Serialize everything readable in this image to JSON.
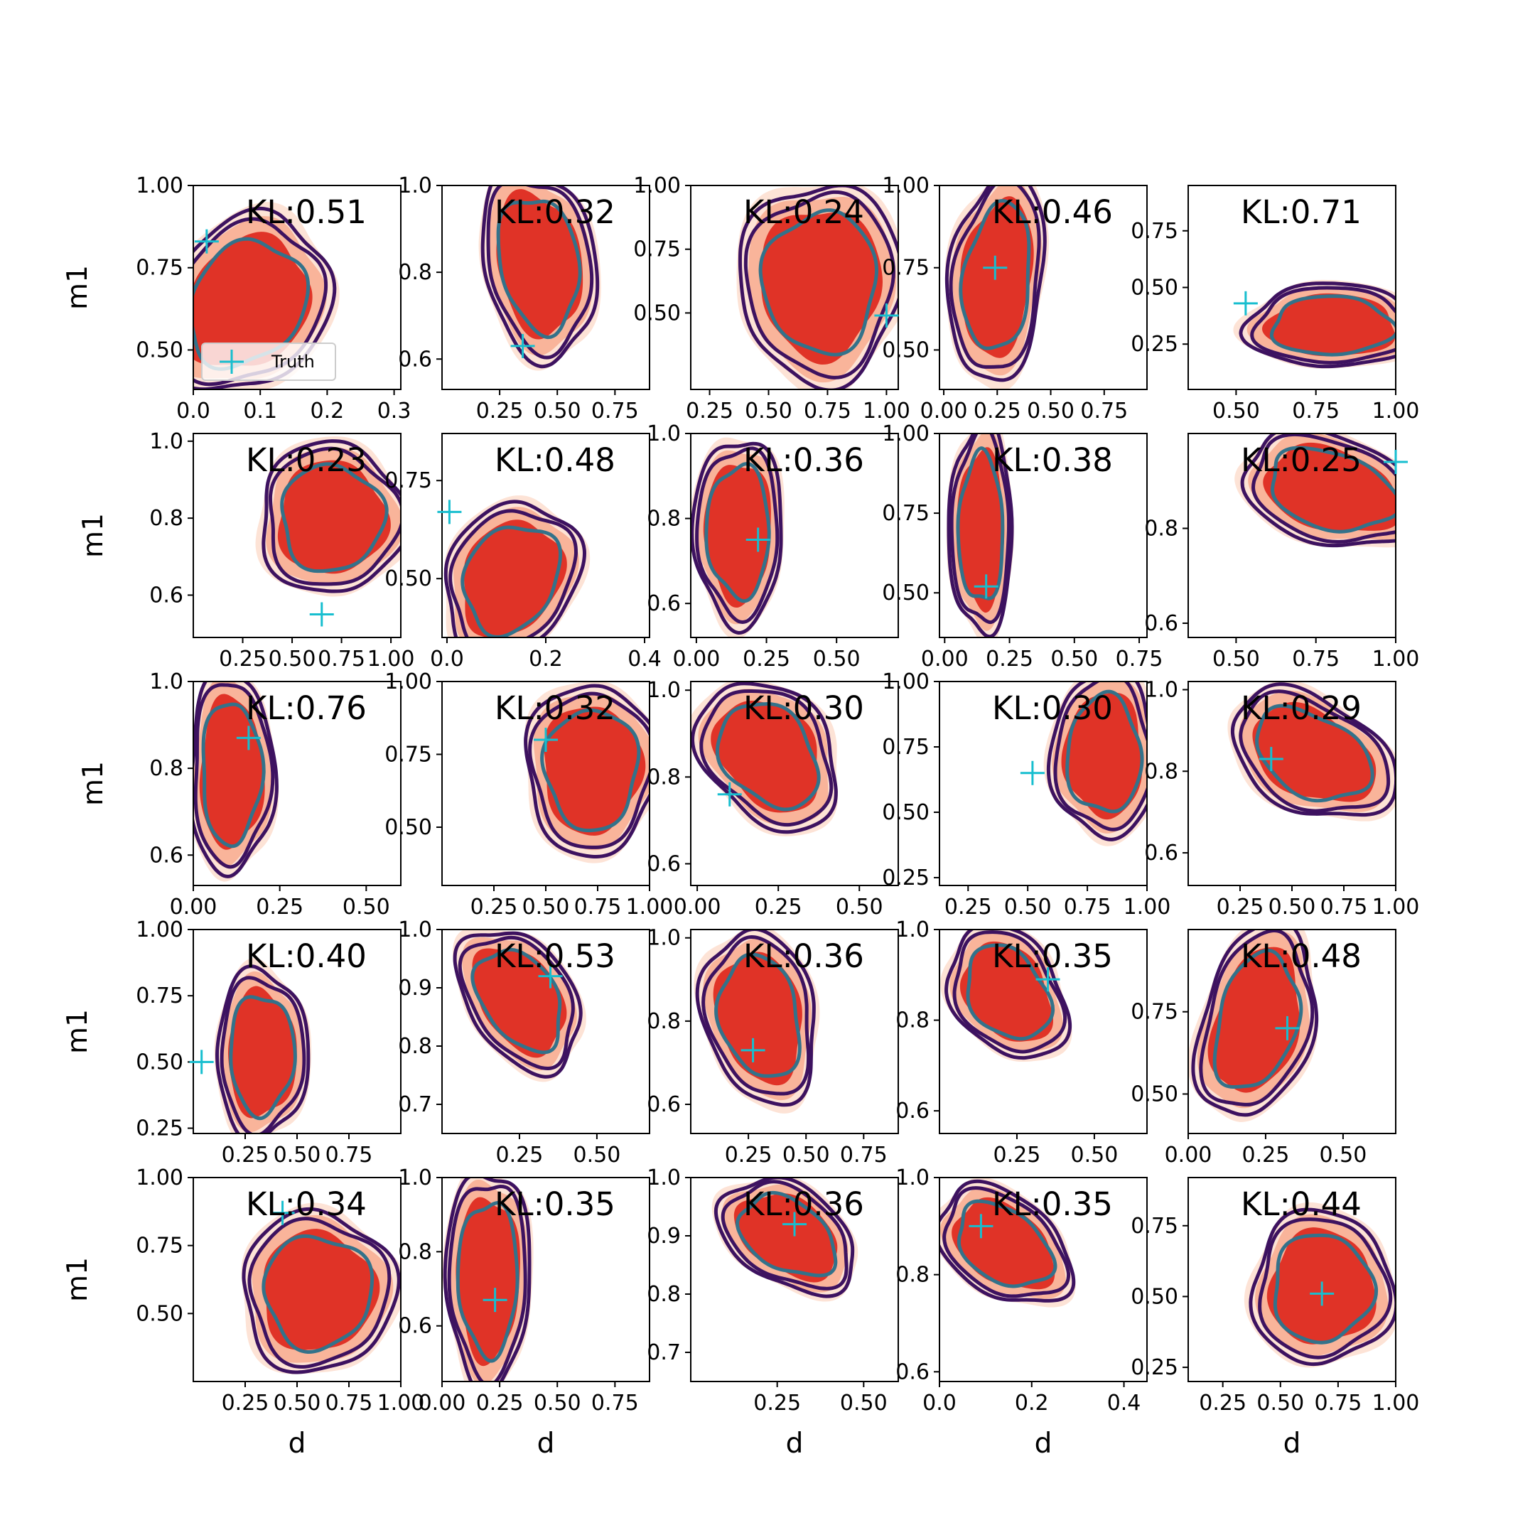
{
  "chart_data": {
    "type": "contour-grid",
    "rows": 5,
    "cols": 5,
    "xlabel": "d",
    "ylabel": "m1",
    "legend": {
      "label": "Truth",
      "placement": "lower-left",
      "panel": 0
    },
    "colors": {
      "fill_outer": "#fde3d6",
      "fill_mid": "#f9b49a",
      "fill_inner": "#e03327",
      "contour_outer": "#3d1260",
      "contour_inner": "#33728a",
      "truth_marker": "#17becf"
    },
    "panels": [
      {
        "kl_label": "KL:0.51",
        "xlim": [
          0,
          0.31
        ],
        "ylim": [
          0.38,
          1.0
        ],
        "xticks": [
          "0.0",
          "0.1",
          "0.2",
          "0.3"
        ],
        "xtick_vals": [
          0,
          0.1,
          0.2,
          0.3
        ],
        "yticks": [
          "0.50",
          "0.75",
          "1.00"
        ],
        "ytick_vals": [
          0.5,
          0.75,
          1.0
        ],
        "truth": [
          0.02,
          0.83
        ],
        "shape": {
          "cx": 0.08,
          "cy": 0.64,
          "rx": 0.1,
          "ry": 0.22,
          "skew": -0.2
        }
      },
      {
        "kl_label": "KL:0.32",
        "xlim": [
          0.0,
          0.9
        ],
        "ylim": [
          0.53,
          1.0
        ],
        "xticks": [
          "0.25",
          "0.50",
          "0.75"
        ],
        "xtick_vals": [
          0.25,
          0.5,
          0.75
        ],
        "yticks": [
          "0.6",
          "0.8",
          "1.0"
        ],
        "ytick_vals": [
          0.6,
          0.8,
          1.0
        ],
        "truth": [
          0.35,
          0.63
        ],
        "shape": {
          "cx": 0.42,
          "cy": 0.82,
          "rx": 0.2,
          "ry": 0.18,
          "skew": 0.2
        }
      },
      {
        "kl_label": "KL:0.24",
        "xlim": [
          0.17,
          1.05
        ],
        "ylim": [
          0.2,
          1.0
        ],
        "xticks": [
          "0.25",
          "0.50",
          "0.75",
          "1.00"
        ],
        "xtick_vals": [
          0.25,
          0.5,
          0.75,
          1.0
        ],
        "yticks": [
          "0.50",
          "0.75",
          "1.00"
        ],
        "ytick_vals": [
          0.5,
          0.75,
          1.0
        ],
        "truth": [
          1.0,
          0.49
        ],
        "shape": {
          "cx": 0.72,
          "cy": 0.62,
          "rx": 0.28,
          "ry": 0.32,
          "skew": 0
        }
      },
      {
        "kl_label": "KL:0.46",
        "xlim": [
          -0.02,
          0.95
        ],
        "ylim": [
          0.38,
          1.0
        ],
        "xticks": [
          "0.00",
          "0.25",
          "0.50",
          "0.75"
        ],
        "xtick_vals": [
          0,
          0.25,
          0.5,
          0.75
        ],
        "yticks": [
          "0.50",
          "0.75",
          "1.00"
        ],
        "ytick_vals": [
          0.5,
          0.75,
          1.0
        ],
        "truth": [
          0.24,
          0.75
        ],
        "shape": {
          "cx": 0.25,
          "cy": 0.72,
          "rx": 0.18,
          "ry": 0.26,
          "skew": -0.2
        }
      },
      {
        "kl_label": "KL:0.71",
        "xlim": [
          0.35,
          1.0
        ],
        "ylim": [
          0.05,
          0.95
        ],
        "xticks": [
          "0.50",
          "0.75",
          "1.00"
        ],
        "xtick_vals": [
          0.5,
          0.75,
          1.0
        ],
        "yticks": [
          "0.25",
          "0.50",
          "0.75"
        ],
        "ytick_vals": [
          0.25,
          0.5,
          0.75
        ],
        "truth": [
          0.53,
          0.43
        ],
        "shape": {
          "cx": 0.8,
          "cy": 0.33,
          "rx": 0.22,
          "ry": 0.15,
          "skew": 0
        }
      },
      {
        "kl_label": "KL:0.23",
        "xlim": [
          0.0,
          1.05
        ],
        "ylim": [
          0.49,
          1.02
        ],
        "xticks": [
          "0.25",
          "0.50",
          "0.75",
          "1.00"
        ],
        "xtick_vals": [
          0.25,
          0.5,
          0.75,
          1.0
        ],
        "yticks": [
          "0.6",
          "0.8",
          "1.0"
        ],
        "ytick_vals": [
          0.6,
          0.8,
          1.0
        ],
        "truth": [
          0.65,
          0.55
        ],
        "shape": {
          "cx": 0.7,
          "cy": 0.8,
          "rx": 0.3,
          "ry": 0.16,
          "skew": 0
        }
      },
      {
        "kl_label": "KL:0.48",
        "xlim": [
          -0.01,
          0.41
        ],
        "ylim": [
          0.35,
          0.87
        ],
        "xticks": [
          "0.0",
          "0.2",
          "0.4"
        ],
        "xtick_vals": [
          0,
          0.2,
          0.4
        ],
        "yticks": [
          "0.50",
          "0.75"
        ],
        "ytick_vals": [
          0.5,
          0.75
        ],
        "truth": [
          0.005,
          0.67
        ],
        "shape": {
          "cx": 0.13,
          "cy": 0.5,
          "rx": 0.11,
          "ry": 0.16,
          "skew": -0.2
        }
      },
      {
        "kl_label": "KL:0.36",
        "xlim": [
          -0.02,
          0.72
        ],
        "ylim": [
          0.52,
          1.0
        ],
        "xticks": [
          "0.00",
          "0.25",
          "0.50"
        ],
        "xtick_vals": [
          0,
          0.25,
          0.5
        ],
        "yticks": [
          "0.6",
          "0.8",
          "1.0"
        ],
        "ytick_vals": [
          0.6,
          0.8,
          1.0
        ],
        "truth": [
          0.22,
          0.75
        ],
        "shape": {
          "cx": 0.15,
          "cy": 0.77,
          "rx": 0.13,
          "ry": 0.18,
          "skew": 0
        }
      },
      {
        "kl_label": "KL:0.38",
        "xlim": [
          -0.02,
          0.78
        ],
        "ylim": [
          0.36,
          1.0
        ],
        "xticks": [
          "0.00",
          "0.25",
          "0.50",
          "0.75"
        ],
        "xtick_vals": [
          0,
          0.25,
          0.5,
          0.75
        ],
        "yticks": [
          "0.50",
          "0.75",
          "1.00"
        ],
        "ytick_vals": [
          0.5,
          0.75,
          1.0
        ],
        "truth": [
          0.16,
          0.52
        ],
        "shape": {
          "cx": 0.14,
          "cy": 0.7,
          "rx": 0.1,
          "ry": 0.27,
          "skew": 0
        }
      },
      {
        "kl_label": "KL:0.25",
        "xlim": [
          0.35,
          1.0
        ],
        "ylim": [
          0.57,
          1.0
        ],
        "xticks": [
          "0.50",
          "0.75",
          "1.00"
        ],
        "xtick_vals": [
          0.5,
          0.75,
          1.0
        ],
        "yticks": [
          "0.6",
          "0.8"
        ],
        "ytick_vals": [
          0.6,
          0.8
        ],
        "truth": [
          1.0,
          0.94
        ],
        "shape": {
          "cx": 0.8,
          "cy": 0.88,
          "rx": 0.22,
          "ry": 0.1,
          "skew": 0.3
        }
      },
      {
        "kl_label": "KL:0.76",
        "xlim": [
          0.0,
          0.6
        ],
        "ylim": [
          0.53,
          1.0
        ],
        "xticks": [
          "0.00",
          "0.25",
          "0.50"
        ],
        "xtick_vals": [
          0,
          0.25,
          0.5
        ],
        "yticks": [
          "0.6",
          "0.8",
          "1.0"
        ],
        "ytick_vals": [
          0.6,
          0.8,
          1.0
        ],
        "truth": [
          0.16,
          0.87
        ],
        "shape": {
          "cx": 0.11,
          "cy": 0.79,
          "rx": 0.1,
          "ry": 0.19,
          "skew": 0
        }
      },
      {
        "kl_label": "KL:0.32",
        "xlim": [
          0.0,
          1.0
        ],
        "ylim": [
          0.3,
          1.0
        ],
        "xticks": [
          "0.25",
          "0.50",
          "0.75",
          "1.00"
        ],
        "xtick_vals": [
          0.25,
          0.5,
          0.75,
          1.0
        ],
        "yticks": [
          "0.50",
          "0.75",
          "1.00"
        ],
        "ytick_vals": [
          0.5,
          0.75,
          1.0
        ],
        "truth": [
          0.5,
          0.8
        ],
        "shape": {
          "cx": 0.72,
          "cy": 0.7,
          "rx": 0.26,
          "ry": 0.24,
          "skew": 0
        }
      },
      {
        "kl_label": "KL:0.30",
        "xlim": [
          -0.02,
          0.62
        ],
        "ylim": [
          0.55,
          1.02
        ],
        "xticks": [
          "0.00",
          "0.25",
          "0.50"
        ],
        "xtick_vals": [
          0,
          0.25,
          0.5
        ],
        "yticks": [
          "0.6",
          "0.8",
          "1.0"
        ],
        "ytick_vals": [
          0.6,
          0.8,
          1.0
        ],
        "truth": [
          0.1,
          0.76
        ],
        "shape": {
          "cx": 0.22,
          "cy": 0.85,
          "rx": 0.17,
          "ry": 0.14,
          "skew": 0.3
        }
      },
      {
        "kl_label": "KL:0.30",
        "xlim": [
          0.13,
          1.0
        ],
        "ylim": [
          0.22,
          1.0
        ],
        "xticks": [
          "0.25",
          "0.50",
          "0.75",
          "1.00"
        ],
        "xtick_vals": [
          0.25,
          0.5,
          0.75,
          1.0
        ],
        "yticks": [
          "0.25",
          "0.50",
          "0.75",
          "1.00"
        ],
        "ytick_vals": [
          0.25,
          0.5,
          0.75,
          1.0
        ],
        "truth": [
          0.52,
          0.65
        ],
        "shape": {
          "cx": 0.82,
          "cy": 0.72,
          "rx": 0.18,
          "ry": 0.26,
          "skew": 0
        }
      },
      {
        "kl_label": "KL:0.29",
        "xlim": [
          0.0,
          1.0
        ],
        "ylim": [
          0.52,
          1.02
        ],
        "xticks": [
          "0.25",
          "0.50",
          "0.75",
          "1.00"
        ],
        "xtick_vals": [
          0.25,
          0.5,
          0.75,
          1.0
        ],
        "yticks": [
          "0.6",
          "0.8",
          "1.0"
        ],
        "ytick_vals": [
          0.6,
          0.8,
          1.0
        ],
        "truth": [
          0.4,
          0.83
        ],
        "shape": {
          "cx": 0.6,
          "cy": 0.84,
          "rx": 0.3,
          "ry": 0.13,
          "skew": 0.4
        }
      },
      {
        "kl_label": "KL:0.40",
        "xlim": [
          0.0,
          1.0
        ],
        "ylim": [
          0.23,
          1.0
        ],
        "xticks": [
          "0.25",
          "0.50",
          "0.75"
        ],
        "xtick_vals": [
          0.25,
          0.5,
          0.75
        ],
        "yticks": [
          "0.25",
          "0.50",
          "0.75",
          "1.00"
        ],
        "ytick_vals": [
          0.25,
          0.5,
          0.75,
          1.0
        ],
        "truth": [
          0.04,
          0.5
        ],
        "shape": {
          "cx": 0.33,
          "cy": 0.53,
          "rx": 0.18,
          "ry": 0.26,
          "skew": 0
        }
      },
      {
        "kl_label": "KL:0.53",
        "xlim": [
          0.0,
          0.67
        ],
        "ylim": [
          0.65,
          1.0
        ],
        "xticks": [
          "0.25",
          "0.50"
        ],
        "xtick_vals": [
          0.25,
          0.5
        ],
        "yticks": [
          "0.7",
          "0.8",
          "0.9",
          "1.0"
        ],
        "ytick_vals": [
          0.7,
          0.8,
          0.9,
          1.0
        ],
        "truth": [
          0.35,
          0.92
        ],
        "shape": {
          "cx": 0.25,
          "cy": 0.88,
          "rx": 0.15,
          "ry": 0.1,
          "skew": 0.4
        }
      },
      {
        "kl_label": "KL:0.36",
        "xlim": [
          0.0,
          0.9
        ],
        "ylim": [
          0.53,
          1.02
        ],
        "xticks": [
          "0.25",
          "0.50",
          "0.75"
        ],
        "xtick_vals": [
          0.25,
          0.5,
          0.75
        ],
        "yticks": [
          "0.6",
          "0.8",
          "1.0"
        ],
        "ytick_vals": [
          0.6,
          0.8,
          1.0
        ],
        "truth": [
          0.27,
          0.73
        ],
        "shape": {
          "cx": 0.3,
          "cy": 0.81,
          "rx": 0.2,
          "ry": 0.17,
          "skew": 0.2
        }
      },
      {
        "kl_label": "KL:0.35",
        "xlim": [
          0.0,
          0.67
        ],
        "ylim": [
          0.55,
          1.0
        ],
        "xticks": [
          "0.25",
          "0.50"
        ],
        "xtick_vals": [
          0.25,
          0.5
        ],
        "yticks": [
          "0.6",
          "0.8",
          "1.0"
        ],
        "ytick_vals": [
          0.6,
          0.8,
          1.0
        ],
        "truth": [
          0.35,
          0.89
        ],
        "shape": {
          "cx": 0.22,
          "cy": 0.86,
          "rx": 0.15,
          "ry": 0.12,
          "skew": 0.3
        }
      },
      {
        "kl_label": "KL:0.48",
        "xlim": [
          0.0,
          0.67
        ],
        "ylim": [
          0.38,
          1.0
        ],
        "xticks": [
          "0.00",
          "0.25",
          "0.50"
        ],
        "xtick_vals": [
          0,
          0.25,
          0.5
        ],
        "yticks": [
          "0.50",
          "0.75"
        ],
        "ytick_vals": [
          0.5,
          0.75
        ],
        "truth": [
          0.32,
          0.7
        ],
        "shape": {
          "cx": 0.22,
          "cy": 0.72,
          "rx": 0.15,
          "ry": 0.24,
          "skew": -0.3
        }
      },
      {
        "kl_label": "KL:0.34",
        "xlim": [
          0.0,
          1.0
        ],
        "ylim": [
          0.25,
          1.0
        ],
        "xticks": [
          "0.25",
          "0.50",
          "0.75",
          "1.00"
        ],
        "xtick_vals": [
          0.25,
          0.5,
          0.75,
          1.0
        ],
        "yticks": [
          "0.50",
          "0.75",
          "1.00"
        ],
        "ytick_vals": [
          0.5,
          0.75,
          1.0
        ],
        "truth": [
          0.43,
          0.87
        ],
        "shape": {
          "cx": 0.6,
          "cy": 0.58,
          "rx": 0.3,
          "ry": 0.24,
          "skew": 0
        }
      },
      {
        "kl_label": "KL:0.35",
        "xlim": [
          0.0,
          0.9
        ],
        "ylim": [
          0.45,
          1.0
        ],
        "xticks": [
          "0.00",
          "0.25",
          "0.50",
          "0.75"
        ],
        "xtick_vals": [
          0,
          0.25,
          0.5,
          0.75
        ],
        "yticks": [
          "0.6",
          "0.8",
          "1.0"
        ],
        "ytick_vals": [
          0.6,
          0.8,
          1.0
        ],
        "truth": [
          0.23,
          0.67
        ],
        "shape": {
          "cx": 0.2,
          "cy": 0.73,
          "rx": 0.15,
          "ry": 0.24,
          "skew": 0
        }
      },
      {
        "kl_label": "KL:0.36",
        "xlim": [
          0.0,
          0.6
        ],
        "ylim": [
          0.65,
          1.0
        ],
        "xticks": [
          "0.25",
          "0.50"
        ],
        "xtick_vals": [
          0.25,
          0.5
        ],
        "yticks": [
          "0.7",
          "0.8",
          "0.9",
          "1.0"
        ],
        "ytick_vals": [
          0.7,
          0.8,
          0.9,
          1.0
        ],
        "truth": [
          0.3,
          0.92
        ],
        "shape": {
          "cx": 0.28,
          "cy": 0.9,
          "rx": 0.15,
          "ry": 0.08,
          "skew": 0.4
        }
      },
      {
        "kl_label": "KL:0.35",
        "xlim": [
          0.0,
          0.45
        ],
        "ylim": [
          0.58,
          1.0
        ],
        "xticks": [
          "0.0",
          "0.2",
          "0.4"
        ],
        "xtick_vals": [
          0,
          0.2,
          0.4
        ],
        "yticks": [
          "0.6",
          "0.8",
          "1.0"
        ],
        "ytick_vals": [
          0.6,
          0.8,
          1.0
        ],
        "truth": [
          0.09,
          0.9
        ],
        "shape": {
          "cx": 0.14,
          "cy": 0.86,
          "rx": 0.11,
          "ry": 0.1,
          "skew": 0.4
        }
      },
      {
        "kl_label": "KL:0.44",
        "xlim": [
          0.1,
          1.0
        ],
        "ylim": [
          0.2,
          0.92
        ],
        "xticks": [
          "0.25",
          "0.50",
          "0.75",
          "1.00"
        ],
        "xtick_vals": [
          0.25,
          0.5,
          0.75,
          1.0
        ],
        "yticks": [
          "0.25",
          "0.50",
          "0.75"
        ],
        "ytick_vals": [
          0.25,
          0.5,
          0.75
        ],
        "truth": [
          0.68,
          0.51
        ],
        "shape": {
          "cx": 0.68,
          "cy": 0.53,
          "rx": 0.25,
          "ry": 0.22,
          "skew": 0
        }
      }
    ]
  }
}
